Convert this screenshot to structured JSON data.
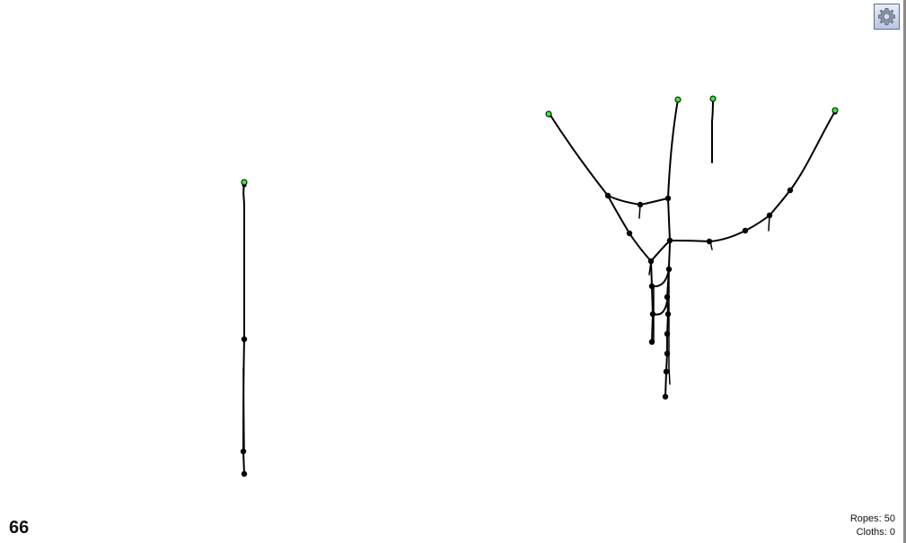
{
  "hud": {
    "frame_counter": "66",
    "stats": [
      {
        "label": "Ropes: ",
        "value": "50"
      },
      {
        "label": "Cloths: ",
        "value": "0"
      }
    ]
  },
  "toolbar": {
    "settings_icon": "gear-icon"
  },
  "colors": {
    "background": "#ffffff",
    "rope": "#000000",
    "node": "#000000",
    "anchor": "#33ee33"
  }
}
